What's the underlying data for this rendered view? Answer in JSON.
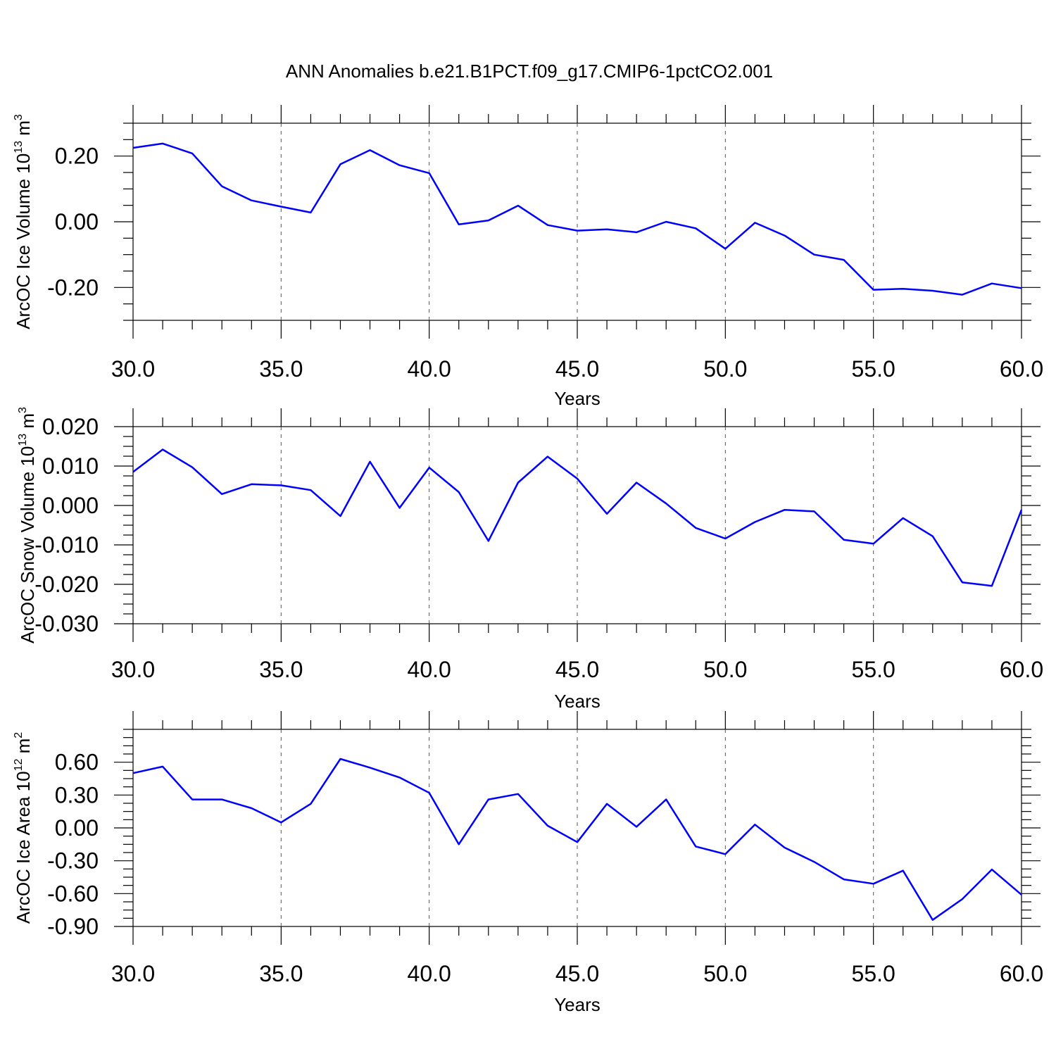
{
  "title": "ANN Anomalies b.e21.B1PCT.f09_g17.CMIP6-1pctCO2.001",
  "colors": {
    "line": "#0000ff",
    "axis": "#000000",
    "grid": "#555555",
    "background": "#ffffff"
  },
  "chart_data": [
    {
      "type": "line",
      "title": "",
      "xlabel": "Years",
      "ylabel": {
        "text": "ArcOC Ice Volume 10",
        "exp": "13",
        "unit": " m",
        "unit_exp": "3"
      },
      "xlim": [
        30,
        60
      ],
      "ylim": [
        -0.3,
        0.3
      ],
      "x_ticks": [
        "30.0",
        "35.0",
        "40.0",
        "45.0",
        "50.0",
        "55.0",
        "60.0"
      ],
      "y_ticks": [
        {
          "value": 0.2,
          "label": "0.20"
        },
        {
          "value": 0.0,
          "label": "0.00"
        },
        {
          "value": -0.2,
          "label": "-0.20"
        }
      ],
      "vertical_grid": "dashed at major x ticks",
      "series": [
        {
          "x": [
            30,
            31,
            32,
            33,
            34,
            35,
            36,
            37,
            38,
            39,
            40,
            41,
            42,
            43,
            44,
            45,
            46,
            47,
            48,
            49,
            50,
            51,
            52,
            53,
            54,
            55,
            56,
            57,
            58,
            59,
            60
          ],
          "values": [
            0.225,
            0.238,
            0.208,
            0.108,
            0.065,
            0.046,
            0.028,
            0.175,
            0.218,
            0.172,
            0.148,
            -0.008,
            0.004,
            0.049,
            -0.01,
            -0.027,
            -0.023,
            -0.032,
            0.0,
            -0.02,
            -0.082,
            -0.003,
            -0.042,
            -0.1,
            -0.116,
            -0.207,
            -0.204,
            -0.21,
            -0.222,
            -0.188,
            -0.202
          ]
        }
      ]
    },
    {
      "type": "line",
      "title": "",
      "xlabel": "Years",
      "ylabel": {
        "text": "ArcOC Snow Volume 10",
        "exp": "13",
        "unit": " m",
        "unit_exp": "3"
      },
      "xlim": [
        30,
        60
      ],
      "ylim": [
        -0.03,
        0.02
      ],
      "x_ticks": [
        "30.0",
        "35.0",
        "40.0",
        "45.0",
        "50.0",
        "55.0",
        "60.0"
      ],
      "y_ticks": [
        {
          "value": 0.02,
          "label": "0.020"
        },
        {
          "value": 0.01,
          "label": "0.010"
        },
        {
          "value": 0.0,
          "label": "0.000"
        },
        {
          "value": -0.01,
          "label": "-0.010"
        },
        {
          "value": -0.02,
          "label": "-0.020"
        },
        {
          "value": -0.03,
          "label": "-0.030"
        }
      ],
      "vertical_grid": "dashed at major x ticks",
      "series": [
        {
          "x": [
            30,
            31,
            32,
            33,
            34,
            35,
            36,
            37,
            38,
            39,
            40,
            41,
            42,
            43,
            44,
            45,
            46,
            47,
            48,
            49,
            50,
            51,
            52,
            53,
            54,
            55,
            56,
            57,
            58,
            59,
            60
          ],
          "values": [
            0.0085,
            0.0142,
            0.0097,
            0.0029,
            0.0054,
            0.0051,
            0.0039,
            -0.0027,
            0.0111,
            -0.0006,
            0.0096,
            0.0034,
            -0.009,
            0.0058,
            0.0124,
            0.0068,
            -0.0021,
            0.0058,
            0.0005,
            -0.0057,
            -0.0084,
            -0.0042,
            -0.0011,
            -0.0015,
            -0.0087,
            -0.0097,
            -0.0032,
            -0.0078,
            -0.0195,
            -0.0204,
            -0.0011
          ]
        }
      ]
    },
    {
      "type": "line",
      "title": "",
      "xlabel": "Years",
      "ylabel": {
        "text": "ArcOC Ice Area 10",
        "exp": "12",
        "unit": " m",
        "unit_exp": "2"
      },
      "xlim": [
        30,
        60
      ],
      "ylim": [
        -0.9,
        0.9
      ],
      "x_ticks": [
        "30.0",
        "35.0",
        "40.0",
        "45.0",
        "50.0",
        "55.0",
        "60.0"
      ],
      "y_ticks": [
        {
          "value": 0.6,
          "label": "0.60"
        },
        {
          "value": 0.3,
          "label": "0.30"
        },
        {
          "value": 0.0,
          "label": "0.00"
        },
        {
          "value": -0.3,
          "label": "-0.30"
        },
        {
          "value": -0.6,
          "label": "-0.60"
        },
        {
          "value": -0.9,
          "label": "-0.90"
        }
      ],
      "vertical_grid": "dashed at major x ticks",
      "series": [
        {
          "x": [
            30,
            31,
            32,
            33,
            34,
            35,
            36,
            37,
            38,
            39,
            40,
            41,
            42,
            43,
            44,
            45,
            46,
            47,
            48,
            49,
            50,
            51,
            52,
            53,
            54,
            55,
            56,
            57,
            58,
            59,
            60
          ],
          "values": [
            0.5,
            0.56,
            0.26,
            0.26,
            0.18,
            0.05,
            0.22,
            0.63,
            0.55,
            0.46,
            0.32,
            -0.15,
            0.26,
            0.31,
            0.02,
            -0.13,
            0.22,
            0.01,
            0.26,
            -0.17,
            -0.24,
            0.03,
            -0.18,
            -0.31,
            -0.47,
            -0.51,
            -0.39,
            -0.84,
            -0.65,
            -0.38,
            -0.61
          ]
        }
      ]
    }
  ]
}
